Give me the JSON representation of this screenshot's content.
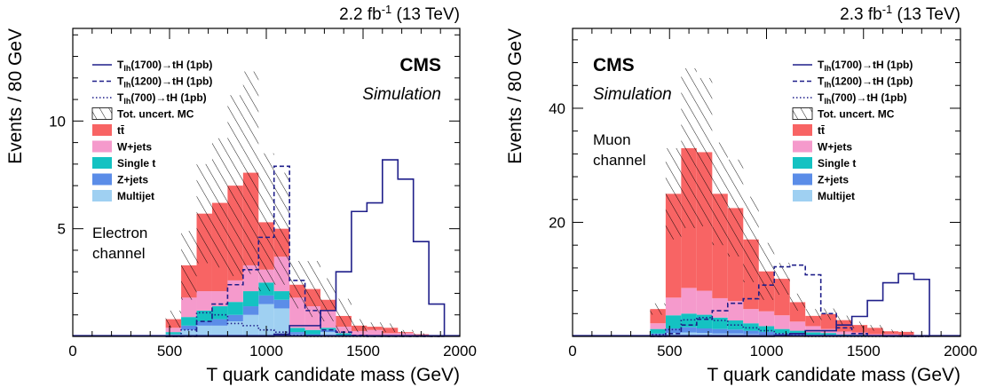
{
  "chart_data": [
    {
      "type": "bar",
      "panel": "left",
      "lumi_label": "2.2 fb",
      "lumi_sup": "-1",
      "lumi_energy": " (13 TeV)",
      "xlabel": "T quark candidate mass (GeV)",
      "ylabel": "Events / 80 GeV",
      "xlim": [
        0,
        2000
      ],
      "ylim": [
        0,
        14.3
      ],
      "xticks": [
        0,
        500,
        1000,
        1500,
        2000
      ],
      "yticks": [
        5,
        10
      ],
      "cms_label": "CMS",
      "sim_label": "Simulation",
      "channel_lines": [
        "Electron",
        "channel"
      ],
      "bin_edges": [
        480,
        560,
        640,
        720,
        800,
        880,
        960,
        1040,
        1120,
        1200,
        1280,
        1360,
        1440,
        1520,
        1600,
        1680,
        1760,
        1840,
        1920
      ],
      "stack": [
        {
          "name": "Multijet",
          "color": "#9fd0f2",
          "values": [
            0.1,
            0.3,
            0.5,
            0.5,
            0.7,
            1.0,
            1.5,
            1.3,
            0.1,
            0.0,
            0.2,
            0.0,
            0.0,
            0.0,
            0.0,
            0.0,
            0.0,
            0.0
          ]
        },
        {
          "name": "Z+jets",
          "color": "#5b8de8",
          "values": [
            0.0,
            0.2,
            0.2,
            0.3,
            0.3,
            0.4,
            0.4,
            0.4,
            0.1,
            0.1,
            0.1,
            0.05,
            0.0,
            0.0,
            0.0,
            0.0,
            0.0,
            0.0
          ]
        },
        {
          "name": "Single t",
          "color": "#14c2c2",
          "values": [
            0.1,
            0.4,
            0.5,
            0.6,
            0.6,
            0.7,
            0.6,
            0.4,
            0.2,
            0.2,
            0.1,
            0.1,
            0.05,
            0.0,
            0.0,
            0.0,
            0.0,
            0.0
          ]
        },
        {
          "name": "W+jets",
          "color": "#f59acc",
          "values": [
            0.2,
            0.9,
            0.9,
            0.7,
            1.0,
            1.2,
            0.6,
            1.6,
            1.4,
            1.1,
            0.8,
            0.3,
            0.2,
            0.3,
            0.15,
            0.15,
            0.05,
            0.0
          ]
        },
        {
          "name": "tt̄",
          "color": "#f86464",
          "values": [
            0.4,
            1.5,
            3.6,
            4.1,
            4.4,
            4.3,
            2.2,
            1.3,
            0.6,
            0.8,
            0.5,
            0.5,
            0.25,
            0.15,
            0.25,
            0.05,
            0.05,
            0.0
          ]
        }
      ],
      "uncertainty_halfwidth": [
        0.4,
        1.6,
        2.3,
        3.0,
        4.2,
        4.7,
        3.2,
        2.6,
        1.1,
        1.3,
        1.0,
        0.8,
        0.3,
        0.2,
        0.2,
        0.1,
        0.05,
        0.0
      ],
      "signals": [
        {
          "name": "T",
          "sub": "lh",
          "rest": "(1700)→tH (1pb)",
          "color": "#1f1f8a",
          "dash": "",
          "values": [
            0,
            0,
            0,
            0,
            0,
            0,
            0,
            0.1,
            0.5,
            0.5,
            1.2,
            3.0,
            5.8,
            6.2,
            8.2,
            7.3,
            4.4,
            1.5
          ]
        },
        {
          "name": "T",
          "sub": "lh",
          "rest": "(1200)→tH (1pb)",
          "color": "#1f1f8a",
          "dash": "5,3",
          "values": [
            0,
            0,
            0.7,
            1.5,
            2.4,
            3.1,
            4.6,
            7.9,
            2.6,
            1.2,
            0.3,
            0.2,
            0.05,
            0,
            0,
            0,
            0,
            0
          ]
        },
        {
          "name": "T",
          "sub": "lh",
          "rest": "(700)→tH (1pb)",
          "color": "#1f1f8a",
          "dash": "1.5,2.5",
          "values": [
            0,
            0.3,
            1.1,
            1.0,
            0.6,
            0.5,
            0.3,
            0.2,
            0.05,
            0,
            0,
            0,
            0,
            0,
            0,
            0,
            0,
            0
          ]
        }
      ],
      "legend_unc_label": "Tot. uncert. MC",
      "legend_bkg_order": [
        "tt̄",
        "W+jets",
        "Single t",
        "Z+jets",
        "Multijet"
      ]
    },
    {
      "type": "bar",
      "panel": "right",
      "lumi_label": "2.3 fb",
      "lumi_sup": "-1",
      "lumi_energy": " (13 TeV)",
      "xlabel": "T quark candidate mass (GeV)",
      "ylabel": "Events / 80 GeV",
      "xlim": [
        0,
        2000
      ],
      "ylim": [
        0,
        54
      ],
      "xticks": [
        0,
        500,
        1000,
        1500,
        2000
      ],
      "yticks": [
        20,
        40
      ],
      "cms_label": "CMS",
      "sim_label": "Simulation",
      "channel_lines": [
        "Muon",
        "channel"
      ],
      "bin_edges": [
        400,
        480,
        560,
        640,
        720,
        800,
        880,
        960,
        1040,
        1120,
        1200,
        1280,
        1360,
        1440,
        1520,
        1600,
        1680,
        1760,
        1840
      ],
      "stack": [
        {
          "name": "Multijet",
          "color": "#9fd0f2",
          "values": [
            0.3,
            0.6,
            0.7,
            0.6,
            0.5,
            0.5,
            0.4,
            0.3,
            0.2,
            0.1,
            0.1,
            0.1,
            0.05,
            0.0,
            0.0,
            0.0,
            0.0,
            0.0
          ]
        },
        {
          "name": "Z+jets",
          "color": "#5b8de8",
          "values": [
            0.2,
            0.8,
            0.9,
            0.8,
            0.8,
            0.7,
            0.6,
            0.5,
            0.3,
            0.3,
            0.2,
            0.2,
            0.1,
            0.1,
            0.0,
            0.0,
            0.0,
            0.0
          ]
        },
        {
          "name": "Single t",
          "color": "#14c2c2",
          "values": [
            0.8,
            2.3,
            2.4,
            2.4,
            2.0,
            1.6,
            1.3,
            1.0,
            0.8,
            0.6,
            0.4,
            0.3,
            0.2,
            0.2,
            0.1,
            0.1,
            0.0,
            0.0
          ]
        },
        {
          "name": "W+jets",
          "color": "#f59acc",
          "values": [
            1.0,
            3.1,
            4.5,
            4.2,
            3.4,
            3.4,
            2.5,
            2.6,
            2.4,
            1.6,
            1.1,
            0.7,
            0.5,
            0.4,
            0.3,
            0.3,
            0.2,
            0.0
          ]
        },
        {
          "name": "tt̄",
          "color": "#f86464",
          "values": [
            2.5,
            18.2,
            24.5,
            24.3,
            18.3,
            16.3,
            12.2,
            7.0,
            6.4,
            3.4,
            1.8,
            2.6,
            2.0,
            1.3,
            1.1,
            0.5,
            0.6,
            0.0
          ]
        }
      ],
      "uncertainty_halfwidth": [
        1.0,
        8.0,
        14.0,
        13.0,
        9.0,
        8.5,
        7.5,
        5.0,
        2.8,
        1.5,
        1.2,
        1.0,
        0.8,
        0.6,
        0.5,
        0.3,
        0.2,
        0.0
      ],
      "signals": [
        {
          "name": "T",
          "sub": "lh",
          "rest": "(1700)→tH (1pb)",
          "color": "#1f1f8a",
          "dash": "",
          "values": [
            0,
            0,
            0,
            0,
            0,
            0,
            0,
            0,
            0.2,
            0.5,
            1.0,
            1.0,
            2.0,
            3.5,
            6.3,
            9.4,
            11.0,
            10.0
          ]
        },
        {
          "name": "T",
          "sub": "lh",
          "rest": "(1200)→tH (1pb)",
          "color": "#1f1f8a",
          "dash": "5,3",
          "values": [
            0,
            0.5,
            2.0,
            3.0,
            4.5,
            5.8,
            6.6,
            9.0,
            12.2,
            12.5,
            10.8,
            4.0,
            1.5,
            0.5,
            0.1,
            0,
            0,
            0
          ]
        },
        {
          "name": "T",
          "sub": "lh",
          "rest": "(700)→tH (1pb)",
          "color": "#1f1f8a",
          "dash": "1.5,2.5",
          "values": [
            0.3,
            1.2,
            2.9,
            3.3,
            2.8,
            2.0,
            1.5,
            1.0,
            0.5,
            0.2,
            0,
            0,
            0,
            0,
            0,
            0,
            0,
            0
          ]
        }
      ],
      "legend_unc_label": "Tot. uncert. MC",
      "legend_bkg_order": [
        "tt̄",
        "W+jets",
        "Single t",
        "Z+jets",
        "Multijet"
      ]
    }
  ]
}
